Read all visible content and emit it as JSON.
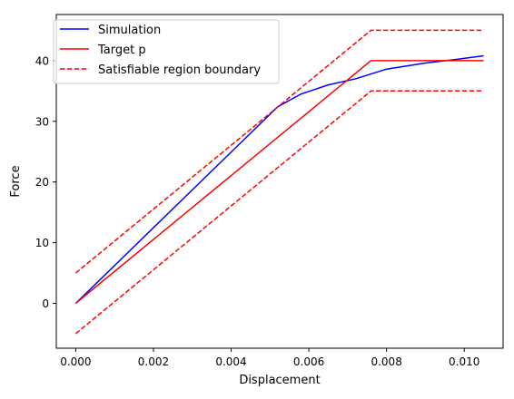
{
  "chart_data": {
    "type": "line",
    "title": "",
    "xlabel": "Displacement",
    "ylabel": "Force",
    "xlim": [
      -0.0005,
      0.011
    ],
    "ylim": [
      -7.4,
      47.6
    ],
    "xticks": [
      0.0,
      0.002,
      0.004,
      0.006,
      0.008,
      0.01
    ],
    "xtick_labels": [
      "0.000",
      "0.002",
      "0.004",
      "0.006",
      "0.008",
      "0.010"
    ],
    "yticks": [
      0,
      10,
      20,
      30,
      40
    ],
    "ytick_labels": [
      "0",
      "10",
      "20",
      "30",
      "40"
    ],
    "grid": false,
    "legend_position": "upper-left",
    "legend": [
      {
        "label": "Simulation",
        "color": "#0000ff",
        "style": "solid"
      },
      {
        "label": "Target p",
        "color": "#ff0000",
        "style": "solid"
      },
      {
        "label": "Satisfiable region boundary",
        "color": "#ff0000",
        "style": "dashed"
      }
    ],
    "series": [
      {
        "name": "Simulation",
        "color": "#0000ff",
        "style": "solid",
        "x": [
          0.0,
          0.0052,
          0.0058,
          0.0065,
          0.0072,
          0.008,
          0.009,
          0.0098,
          0.0105
        ],
        "y": [
          0.0,
          32.4,
          34.5,
          36.0,
          37.0,
          38.6,
          39.6,
          40.2,
          40.8
        ]
      },
      {
        "name": "Target p",
        "color": "#ff0000",
        "style": "solid",
        "x": [
          0.0,
          0.0076,
          0.0105
        ],
        "y": [
          0.0,
          40.0,
          40.0
        ]
      },
      {
        "name": "Satisfiable region boundary",
        "color": "#ff0000",
        "style": "dashed",
        "x": [
          0.0,
          0.0076,
          0.0105
        ],
        "y": [
          5.0,
          45.0,
          45.0
        ]
      },
      {
        "name": "Satisfiable region boundary",
        "color": "#ff0000",
        "style": "dashed",
        "x": [
          0.0,
          0.0076,
          0.0105
        ],
        "y": [
          -5.0,
          35.0,
          35.0
        ]
      }
    ]
  }
}
